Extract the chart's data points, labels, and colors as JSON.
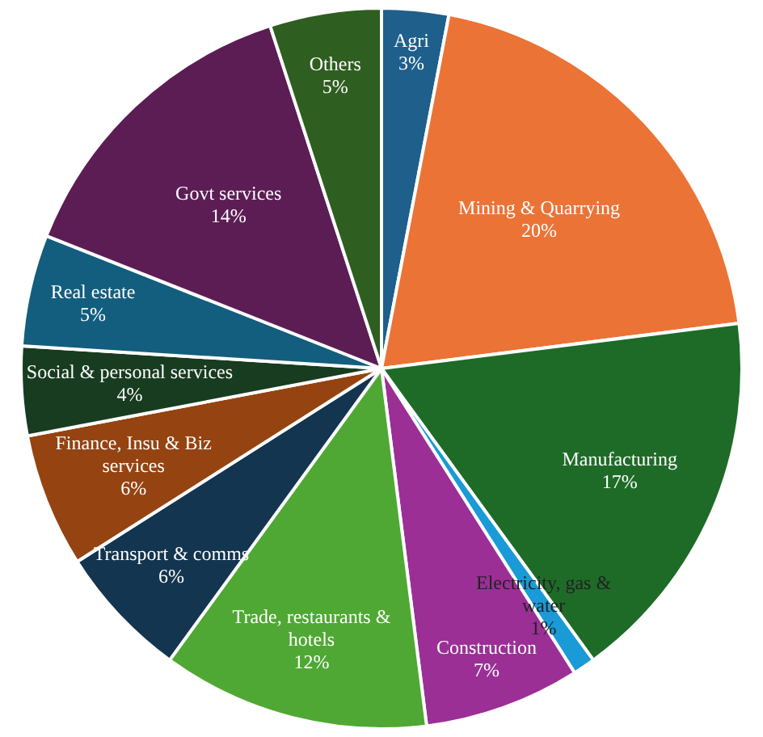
{
  "chart_data": {
    "type": "pie",
    "categories": [
      "Agri",
      "Mining & Quarrying",
      "Manufacturing",
      "Electricity, gas & water",
      "Construction",
      "Trade, restaurants & hotels",
      "Transport & comms",
      "Finance, Insu & Biz services",
      "Social & personal services",
      "Real estate",
      "Govt services",
      "Others"
    ],
    "values": [
      3,
      20,
      17,
      1,
      7,
      12,
      6,
      6,
      4,
      5,
      14,
      5
    ],
    "value_labels": [
      "3%",
      "20%",
      "17%",
      "1%",
      "7%",
      "12%",
      "6%",
      "6%",
      "4%",
      "5%",
      "14%",
      "5%"
    ],
    "colors": [
      "#1f5f8b",
      "#eb7336",
      "#1e6b28",
      "#1a9ad6",
      "#9b2f96",
      "#4fa833",
      "#13354f",
      "#954311",
      "#183c20",
      "#135e7e",
      "#5c1d55",
      "#2e5e20"
    ],
    "legend": false
  }
}
